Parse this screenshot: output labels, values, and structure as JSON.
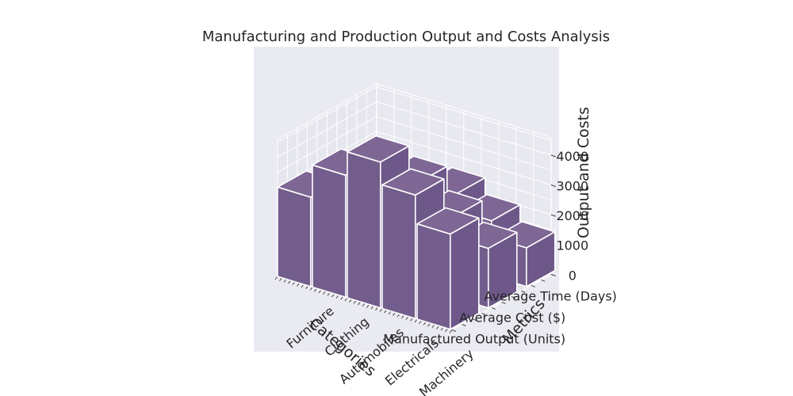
{
  "chart_data": {
    "type": "bar3d",
    "title": "Manufacturing and Production Output and Costs Analysis",
    "xlabel": "Categories",
    "ylabel": "Metrics",
    "zlabel": "Output and Costs",
    "categories": [
      "Furniture",
      "Clothing",
      "Automobiles",
      "Electricals",
      "Machinery"
    ],
    "metrics": [
      "Manufactured Output (Units)",
      "Average Cost ($)",
      "Average Time (Days)"
    ],
    "zticks": [
      0,
      1000,
      2000,
      3000,
      4000
    ],
    "zlim": [
      0,
      4600
    ],
    "values": [
      [
        3000,
        1800,
        950
      ],
      [
        4100,
        2700,
        1700
      ],
      [
        4900,
        3500,
        2400
      ],
      [
        4150,
        2700,
        1850
      ],
      [
        3200,
        2000,
        1300
      ]
    ],
    "colors": {
      "bar_top": "#7e6794",
      "bar_side": "#6e5889",
      "bar_front": "#735d8c",
      "pane": "#eaeaf2"
    }
  }
}
